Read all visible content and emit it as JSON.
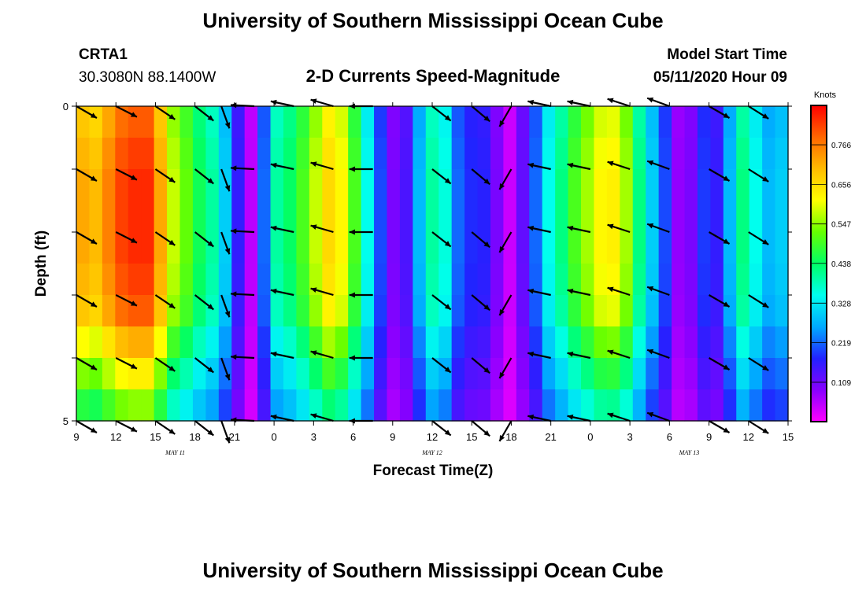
{
  "header": {
    "title": "University of Southern Mississippi Ocean Cube",
    "station_id": "CRTA1",
    "station_coords": "30.3080N 88.1400W",
    "subtitle": "2-D Currents Speed-Magnitude",
    "model_start_label": "Model Start Time",
    "model_start_value": "05/11/2020 Hour 09"
  },
  "footer": {
    "title": "University of Southern Mississippi Ocean Cube"
  },
  "colors": {
    "background": "#ffffff",
    "axis": "#000000",
    "arrow": "#000000"
  },
  "chart_data": {
    "type": "heatmap",
    "title": "2-D Currents Speed-Magnitude",
    "xlabel": "Forecast Time(Z)",
    "ylabel": "Depth (ft)",
    "colorbar_label": "Knots",
    "colorbar_ticks": [
      "0.766",
      "0.656",
      "0.547",
      "0.438",
      "0.328",
      "0.219",
      "0.109"
    ],
    "colorbar_range": [
      0,
      0.875
    ],
    "colorbar_colors": [
      "#ff00ff",
      "#8800ff",
      "#2222ff",
      "#00aaff",
      "#00ffee",
      "#00ff66",
      "#66ff00",
      "#ffff00",
      "#ffbb00",
      "#ff6600",
      "#ff0000"
    ],
    "xlim": [
      0,
      54
    ],
    "ylim": [
      0,
      5
    ],
    "y_ticks": [
      "0",
      "5"
    ],
    "x_ticks": [
      {
        "h": 0,
        "label": "9"
      },
      {
        "h": 3,
        "label": "12"
      },
      {
        "h": 6,
        "label": "15"
      },
      {
        "h": 9,
        "label": "18"
      },
      {
        "h": 12,
        "label": "21"
      },
      {
        "h": 15,
        "label": "0"
      },
      {
        "h": 18,
        "label": "3"
      },
      {
        "h": 21,
        "label": "6"
      },
      {
        "h": 24,
        "label": "9"
      },
      {
        "h": 27,
        "label": "12"
      },
      {
        "h": 30,
        "label": "15"
      },
      {
        "h": 33,
        "label": "18"
      },
      {
        "h": 36,
        "label": "21"
      },
      {
        "h": 39,
        "label": "0"
      },
      {
        "h": 42,
        "label": "3"
      },
      {
        "h": 45,
        "label": "6"
      },
      {
        "h": 48,
        "label": "9"
      },
      {
        "h": 51,
        "label": "12"
      },
      {
        "h": 54,
        "label": "15"
      }
    ],
    "date_labels": [
      {
        "h": 7.5,
        "label": "MAY 11"
      },
      {
        "h": 27,
        "label": "MAY 12"
      },
      {
        "h": 46.5,
        "label": "MAY 13"
      }
    ],
    "speed_by_hour": [
      0.72,
      0.7,
      0.76,
      0.82,
      0.84,
      0.84,
      0.72,
      0.58,
      0.52,
      0.45,
      0.4,
      0.3,
      0.16,
      0.05,
      0.22,
      0.4,
      0.44,
      0.5,
      0.58,
      0.66,
      0.62,
      0.5,
      0.35,
      0.2,
      0.1,
      0.14,
      0.28,
      0.4,
      0.36,
      0.22,
      0.18,
      0.17,
      0.1,
      0.04,
      0.12,
      0.22,
      0.35,
      0.42,
      0.5,
      0.56,
      0.62,
      0.63,
      0.56,
      0.42,
      0.3,
      0.2,
      0.08,
      0.1,
      0.19,
      0.16,
      0.28,
      0.42,
      0.35,
      0.28,
      0.3
    ],
    "depth_factors": [
      0.95,
      0.98,
      1.0,
      1.0,
      1.0,
      0.98,
      0.95,
      0.85,
      0.75,
      0.65
    ],
    "vectors": {
      "columns": [
        {
          "h": 0,
          "angle": -30
        },
        {
          "h": 3,
          "angle": -27
        },
        {
          "h": 6,
          "angle": -34
        },
        {
          "h": 9,
          "angle": -38
        },
        {
          "h": 11,
          "angle": -70
        },
        {
          "h": 13.5,
          "angle": 177
        },
        {
          "h": 16.5,
          "angle": 168
        },
        {
          "h": 19.5,
          "angle": 164
        },
        {
          "h": 22.5,
          "angle": 180
        },
        {
          "h": 27,
          "angle": -38
        },
        {
          "h": 30,
          "angle": -40
        },
        {
          "h": 33,
          "angle": -120
        },
        {
          "h": 36,
          "angle": 168
        },
        {
          "h": 39,
          "angle": 168
        },
        {
          "h": 42,
          "angle": 162
        },
        {
          "h": 45,
          "angle": 160
        },
        {
          "h": 48,
          "angle": -30
        },
        {
          "h": 51,
          "angle": -32
        }
      ],
      "depths": [
        0,
        1,
        2,
        3,
        4,
        5
      ],
      "note": "angle in degrees, math convention (0 = east, positive = north/up)"
    }
  }
}
